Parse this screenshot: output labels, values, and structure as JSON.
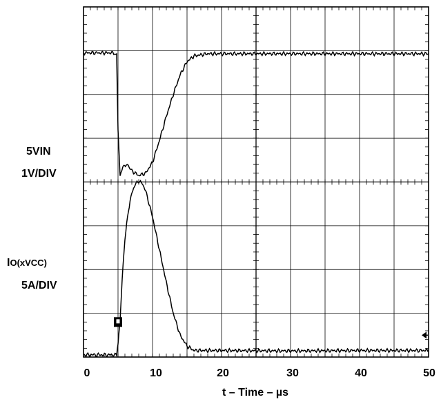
{
  "chart_data": {
    "type": "line",
    "xlabel": "t – Time – µs",
    "xlim": [
      0,
      50
    ],
    "x_ticks": [
      "0",
      "10",
      "20",
      "30",
      "40",
      "50"
    ],
    "grid": true,
    "divisions": {
      "x": 10,
      "y": 8
    },
    "series": [
      {
        "label_main": "5VIN",
        "label_scale": "1V/DIV",
        "units": "div",
        "points": [
          [
            0,
            2.95
          ],
          [
            4.5,
            2.95
          ],
          [
            4.8,
            2.9
          ],
          [
            5.0,
            1.2
          ],
          [
            5.3,
            0.1
          ],
          [
            5.7,
            0.35
          ],
          [
            6.2,
            0.4
          ],
          [
            7,
            0.25
          ],
          [
            8,
            0.15
          ],
          [
            9,
            0.2
          ],
          [
            10,
            0.45
          ],
          [
            11,
            0.95
          ],
          [
            12,
            1.5
          ],
          [
            13,
            2.0
          ],
          [
            14,
            2.45
          ],
          [
            15,
            2.75
          ],
          [
            16,
            2.88
          ],
          [
            18,
            2.93
          ],
          [
            20,
            2.93
          ],
          [
            30,
            2.93
          ],
          [
            40,
            2.93
          ],
          [
            50,
            2.93
          ]
        ]
      },
      {
        "label_main": "I",
        "label_sub": "O(xVCC)",
        "label_scale": "5A/DIV",
        "units": "div",
        "points": [
          [
            0,
            0.05
          ],
          [
            4.8,
            0.05
          ],
          [
            5.0,
            0.3
          ],
          [
            5.3,
            0.85
          ],
          [
            5.6,
            1.8
          ],
          [
            6,
            2.7
          ],
          [
            6.5,
            3.35
          ],
          [
            7,
            3.75
          ],
          [
            7.5,
            3.95
          ],
          [
            8,
            4.02
          ],
          [
            8.5,
            3.97
          ],
          [
            9,
            3.8
          ],
          [
            10,
            3.2
          ],
          [
            11,
            2.45
          ],
          [
            12,
            1.7
          ],
          [
            13,
            1.0
          ],
          [
            14,
            0.5
          ],
          [
            15,
            0.25
          ],
          [
            16,
            0.15
          ],
          [
            20,
            0.15
          ],
          [
            30,
            0.14
          ],
          [
            40,
            0.15
          ],
          [
            50,
            0.15
          ]
        ]
      }
    ],
    "trigger_marker": {
      "x": 5,
      "series": 1,
      "level_div": 0.8
    },
    "ground_marker": {
      "series": 1,
      "level_div": 0.5
    }
  }
}
